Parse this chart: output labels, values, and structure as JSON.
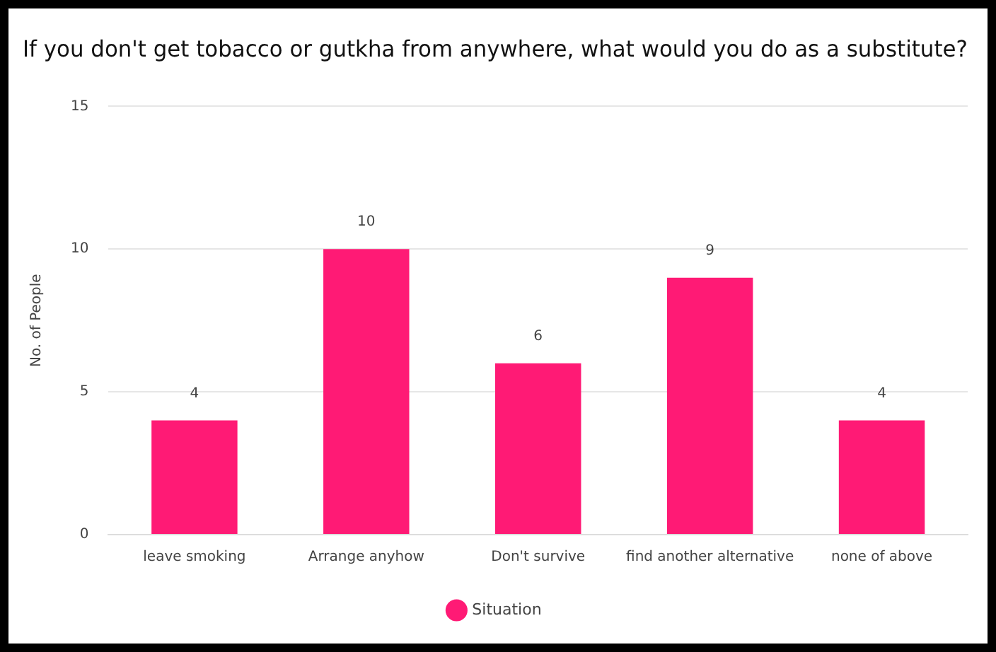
{
  "chart_data": {
    "type": "bar",
    "title": "If you don't get tobacco or gutkha from anywhere, what would you do as a substitute?",
    "ylabel": "No. of People",
    "categories": [
      "leave smoking",
      "Arrange anyhow",
      "Don't survive",
      "find another alternative",
      "none of above"
    ],
    "series": [
      {
        "name": "Situation",
        "color": "#ff1a75",
        "values": [
          4,
          10,
          6,
          9,
          4
        ]
      }
    ],
    "ylim": [
      0,
      15
    ],
    "yticks": [
      0,
      5,
      10,
      15
    ],
    "grid": "y",
    "legend": "bottom",
    "data_labels": true
  }
}
